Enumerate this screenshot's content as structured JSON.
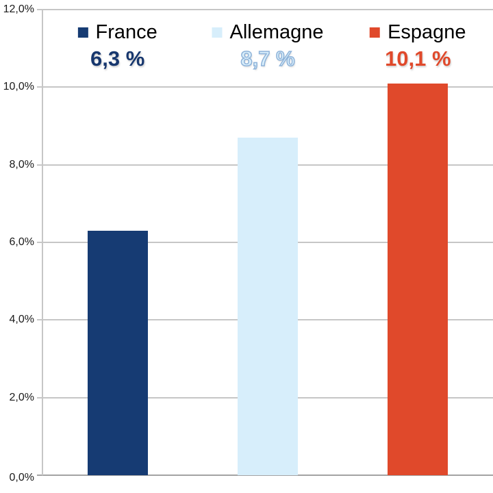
{
  "chart_data": {
    "type": "bar",
    "title": "",
    "xlabel": "",
    "ylabel": "",
    "categories": [
      "France",
      "Allemagne",
      "Espagne"
    ],
    "values": [
      6.3,
      8.7,
      10.1
    ],
    "value_labels": [
      "6,3 %",
      "8,7 %",
      "10,1 %"
    ],
    "bar_colors": [
      "#163B73",
      "#D7EEFB",
      "#E0492B"
    ],
    "value_label_styles": [
      {
        "color": "#17376E",
        "stroke": ""
      },
      {
        "color": "#D8EEFB",
        "stroke": "#8FB3D9"
      },
      {
        "color": "#E0492B",
        "stroke": ""
      }
    ],
    "ylim": [
      0,
      12
    ],
    "ytick_values": [
      0,
      2,
      4,
      6,
      8,
      10,
      12
    ],
    "ytick_labels": [
      "0,0%",
      "2,0%",
      "4,0%",
      "6,0%",
      "8,0%",
      "10,0%",
      "12,0%"
    ],
    "grid": true,
    "legend_position": "top",
    "gridline_color": "#C6C6C6",
    "axis_line_color": "#C6C6C6",
    "baseline_color": "#A3A3A3"
  }
}
